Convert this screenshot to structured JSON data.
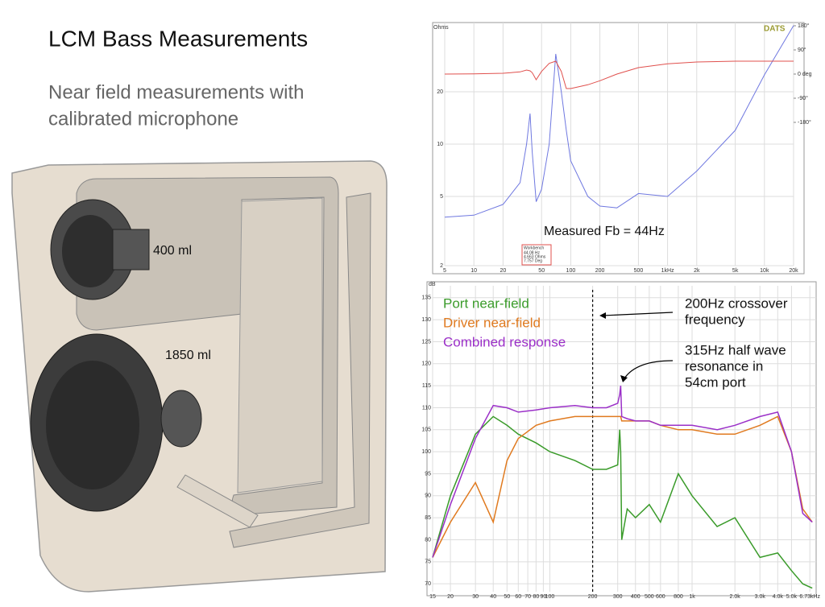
{
  "title": "LCM Bass Measurements",
  "subtitle": [
    "Near field measurements with",
    "calibrated microphone"
  ],
  "illustration": {
    "labels": [
      "400 ml",
      "1850 ml"
    ]
  },
  "chart_data": [
    {
      "type": "line",
      "title": "DATS",
      "y_label": "Ohms",
      "annotation": "Measured Fb = 44Hz",
      "readout": {
        "title": "Workbench",
        "lines": [
          "44.08 Hz",
          "4.663 Ohms",
          "7.757 Deg"
        ]
      },
      "x": [
        5,
        10,
        20,
        30,
        35,
        38,
        40,
        44,
        50,
        60,
        70,
        80,
        90,
        100,
        150,
        200,
        300,
        500,
        1000,
        2000,
        5000,
        10000,
        20000
      ],
      "series": [
        {
          "name": "Ohms",
          "color": "#6f78e0",
          "values": [
            3.8,
            3.9,
            4.5,
            6,
            10,
            15,
            9,
            4.66,
            5.5,
            10,
            33,
            20,
            12,
            8,
            5,
            4.4,
            4.3,
            5.2,
            5,
            7,
            12,
            25,
            48
          ]
        },
        {
          "name": "deg",
          "color": "#e0504d",
          "axis": "y2",
          "values": [
            0,
            1,
            3,
            8,
            15,
            12,
            5,
            -21,
            10,
            40,
            48,
            10,
            -54,
            -54,
            -40,
            -25,
            0,
            24,
            38,
            45,
            48,
            48,
            48
          ]
        }
      ],
      "log_x": true,
      "log_y": true,
      "grid": true,
      "xlim": [
        5,
        20000
      ],
      "xticks": [
        5,
        10,
        20,
        50,
        100,
        200,
        500,
        {
          "value": 1000,
          "label": "1kHz"
        },
        {
          "value": 2000,
          "label": "2k"
        },
        {
          "value": 5000,
          "label": "5k"
        },
        {
          "value": 10000,
          "label": "10k"
        },
        {
          "value": 20000,
          "label": "20k"
        }
      ],
      "ylim": [
        2,
        50
      ],
      "yticks": [
        2,
        5,
        10,
        20
      ],
      "y2lim": [
        -714,
        192
      ],
      "y2ticks": [
        {
          "value": 180,
          "label": "180°"
        },
        {
          "value": 90,
          "label": "90°"
        },
        {
          "value": 0,
          "label": "0 deg"
        },
        {
          "value": -90,
          "label": "-90°"
        },
        {
          "value": -180,
          "label": "-180°"
        }
      ]
    },
    {
      "type": "line",
      "y_label": "dB",
      "log_x": true,
      "grid": true,
      "annotations": [
        [
          "200Hz crossover",
          "frequency"
        ],
        [
          "315Hz half wave",
          "resonance in",
          "54cm port"
        ]
      ],
      "marker_x": 200,
      "x": [
        15,
        20,
        30,
        40,
        50,
        60,
        80,
        100,
        150,
        200,
        250,
        300,
        310,
        315,
        320,
        350,
        400,
        500,
        600,
        800,
        1000,
        1500,
        2000,
        3000,
        4000,
        5000,
        6000,
        7000
      ],
      "series": [
        {
          "name": "Port near-field",
          "color": "#3a9b2a",
          "values": [
            76,
            90,
            104,
            108,
            106,
            104,
            102,
            100,
            98,
            96,
            96,
            97,
            105,
            100,
            80,
            87,
            85,
            88,
            84,
            95,
            90,
            83,
            85,
            76,
            77,
            73,
            70,
            69
          ]
        },
        {
          "name": "Driver near-field",
          "color": "#e07a1f",
          "values": [
            76,
            84,
            93,
            84,
            98,
            103,
            106,
            107,
            108,
            108,
            108,
            108,
            108,
            108,
            107,
            107,
            107,
            107,
            106,
            105,
            105,
            104,
            104,
            106,
            108,
            100,
            87,
            84
          ]
        },
        {
          "name": "Combined response",
          "color": "#9b30c8",
          "values": [
            76,
            88,
            103,
            110.5,
            110,
            109,
            109.5,
            110,
            110.5,
            110,
            110,
            111,
            113,
            115,
            108,
            107.5,
            107,
            107,
            106,
            106,
            106,
            105,
            106,
            108,
            109,
            100,
            86,
            84
          ]
        }
      ],
      "xlim": [
        15,
        7450
      ],
      "xticks": [
        15,
        20,
        30,
        40,
        50,
        60,
        70,
        80,
        90,
        100,
        200,
        300,
        400,
        500,
        600,
        800,
        {
          "value": 1000,
          "label": "1k"
        },
        {
          "value": 2000,
          "label": "2.0k"
        },
        {
          "value": 3000,
          "label": "3.0k"
        },
        {
          "value": 4000,
          "label": "4.0k"
        },
        {
          "value": 5000,
          "label": "5.0k"
        },
        {
          "value": 6730,
          "label": "6.73kHz"
        }
      ],
      "ylim": [
        68.2,
        137.7
      ],
      "yticks": [
        70,
        75,
        80,
        85,
        90,
        95,
        100,
        105,
        110,
        115,
        120,
        125,
        130,
        135
      ]
    }
  ]
}
